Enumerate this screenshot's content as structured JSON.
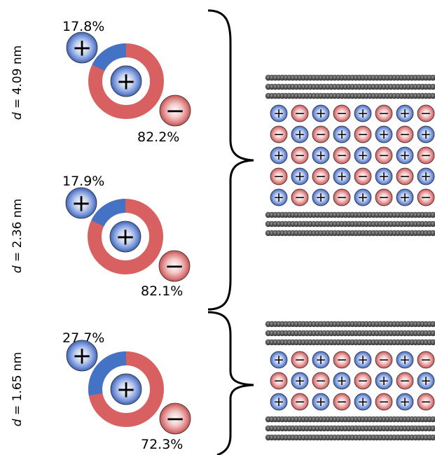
{
  "panels": [
    {
      "d_symbol": "d",
      "d_text": " = 4.09 nm",
      "cation_pct": "17.8%",
      "anion_pct": "82.2%",
      "cation_fraction": 0.178,
      "ion_layers": 5,
      "first_layer_starts_with": "cation"
    },
    {
      "d_symbol": "d",
      "d_text": " = 2.36 nm",
      "cation_pct": "17.9%",
      "anion_pct": "82.1%",
      "cation_fraction": 0.179,
      "ion_layers": 5,
      "first_layer_starts_with": "cation"
    },
    {
      "d_symbol": "d",
      "d_text": " = 1.65 nm",
      "cation_pct": "27.7%",
      "anion_pct": "72.3%",
      "cation_fraction": 0.277,
      "ion_layers": 3,
      "first_layer_starts_with": "cation"
    }
  ],
  "symbols": {
    "cation": "+",
    "anion": "−"
  },
  "colors": {
    "cation": "#4a73c9",
    "cation_ring": "#4472c4",
    "anion": "#d45f5f",
    "anion_ring": "#d86060",
    "electrode": "#555555"
  }
}
